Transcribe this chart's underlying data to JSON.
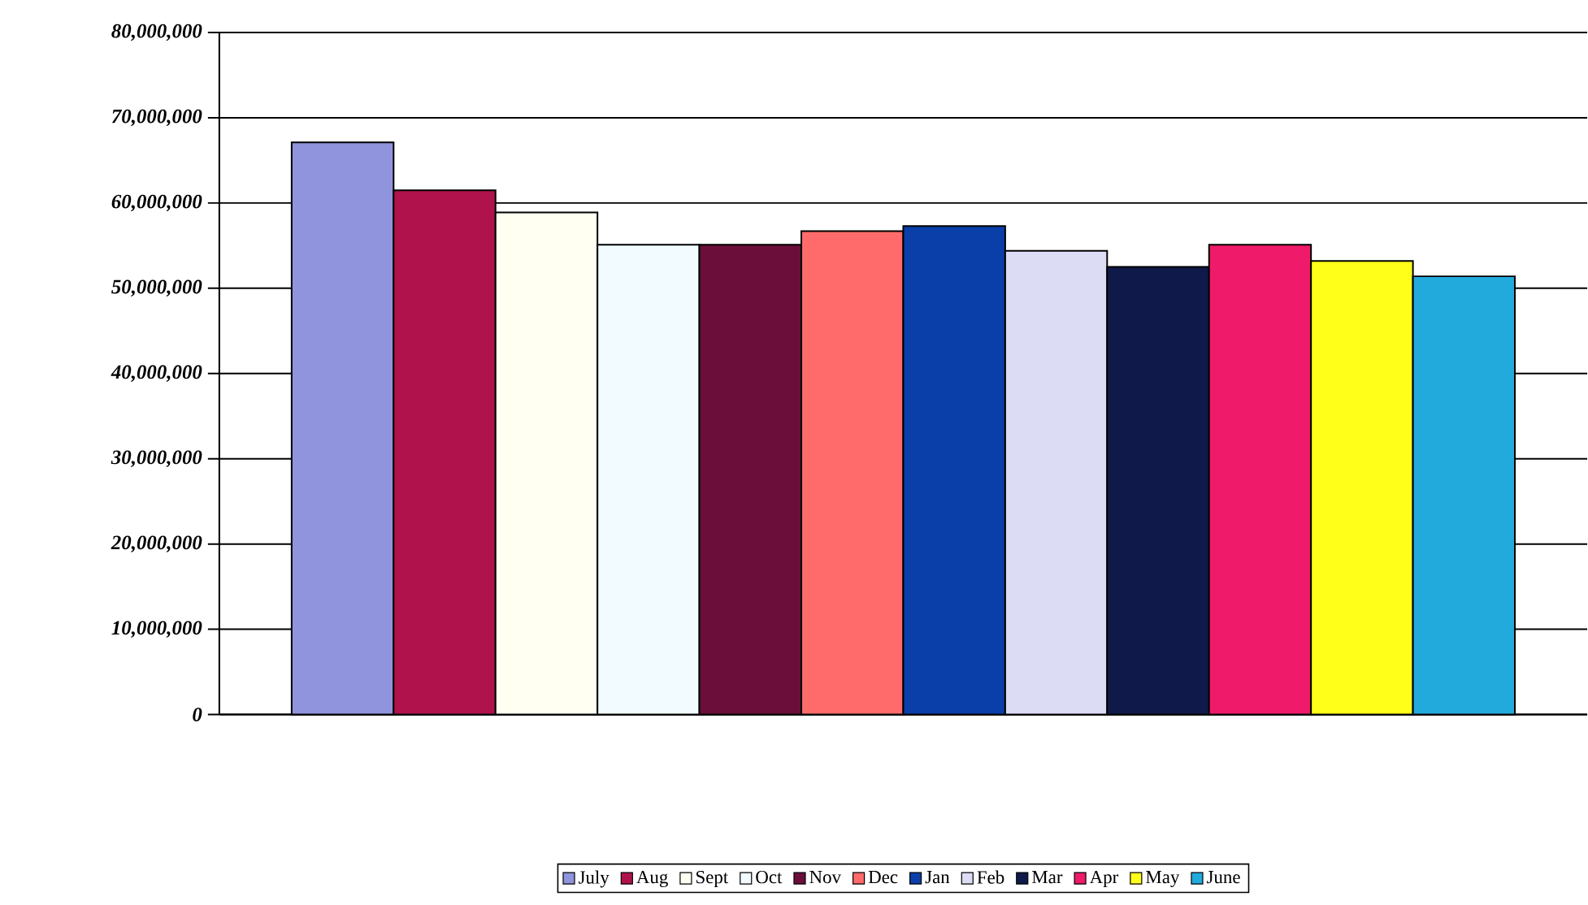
{
  "chart_data": {
    "type": "bar",
    "categories": [
      null
    ],
    "series": [
      {
        "name": "July",
        "color": "#8f94dc",
        "values": [
          67100000
        ]
      },
      {
        "name": "Aug",
        "color": "#b0124c",
        "values": [
          61500000
        ]
      },
      {
        "name": "Sept",
        "color": "#fffff2",
        "values": [
          58900000
        ]
      },
      {
        "name": "Oct",
        "color": "#f2fbff",
        "values": [
          55100000
        ]
      },
      {
        "name": "Nov",
        "color": "#6b0f3a",
        "values": [
          55100000
        ]
      },
      {
        "name": "Dec",
        "color": "#ff6b6b",
        "values": [
          56700000
        ]
      },
      {
        "name": "Jan",
        "color": "#0a3faa",
        "values": [
          57300000
        ]
      },
      {
        "name": "Feb",
        "color": "#dcdcf5",
        "values": [
          54400000
        ]
      },
      {
        "name": "Mar",
        "color": "#0f1a4a",
        "values": [
          52500000
        ]
      },
      {
        "name": "Apr",
        "color": "#ef1a6a",
        "values": [
          55100000
        ]
      },
      {
        "name": "May",
        "color": "#ffff19",
        "values": [
          53200000
        ]
      },
      {
        "name": "June",
        "color": "#22aadd",
        "values": [
          51400000
        ]
      }
    ],
    "ylim": [
      0,
      80000000
    ],
    "yticks": [
      0,
      {
        "value": 10000000,
        "label": "10,000,000"
      },
      {
        "value": 20000000,
        "label": "20,000,000"
      },
      {
        "value": 30000000,
        "label": "30,000,000"
      },
      {
        "value": 40000000,
        "label": "40,000,000"
      },
      {
        "value": 50000000,
        "label": "50,000,000"
      },
      {
        "value": 60000000,
        "label": "60,000,000"
      },
      {
        "value": 70000000,
        "label": "70,000,000"
      },
      {
        "value": 80000000,
        "label": "80,000,000"
      }
    ],
    "grid": "y",
    "legend": "bottom"
  }
}
